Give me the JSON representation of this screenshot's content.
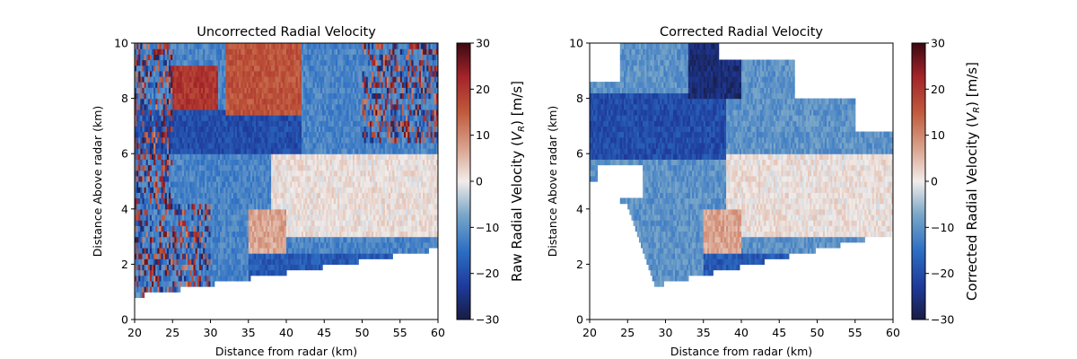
{
  "chart_data": [
    {
      "type": "heatmap",
      "title": "Uncorrected Radial Velocity",
      "xlabel": "Distance from radar (km)",
      "ylabel": "Distance Above radar  (km)",
      "xlim": [
        20,
        60
      ],
      "ylim": [
        0,
        10
      ],
      "xticks": [
        20,
        25,
        30,
        35,
        40,
        45,
        50,
        55,
        60
      ],
      "yticks": [
        0,
        2,
        4,
        6,
        8,
        10
      ],
      "lower_data_edge": [
        [
          20,
          0.85
        ],
        [
          60,
          2.55
        ]
      ],
      "colorbar": {
        "label_pre": "Raw Radial Velocity (",
        "label_sym": "V",
        "label_sub": "R",
        "label_post": ") [m/s]",
        "range": [
          -30,
          30
        ],
        "ticks": [
          -30,
          -20,
          -10,
          0,
          10,
          20,
          30
        ],
        "colormap": "balance"
      },
      "regions": [
        {
          "name": "background-flow",
          "x": [
            20,
            60
          ],
          "y": [
            1.0,
            10
          ],
          "value": -12
        },
        {
          "name": "upper-inbound-core",
          "x": [
            20,
            42
          ],
          "y": [
            6.0,
            7.6
          ],
          "value": -20
        },
        {
          "name": "folded-outbound-left",
          "x": [
            25,
            31
          ],
          "y": [
            7.6,
            9.2
          ],
          "value": 20
        },
        {
          "name": "folded-outbound-right",
          "x": [
            32,
            42
          ],
          "y": [
            7.4,
            10
          ],
          "value": 16
        },
        {
          "name": "near-zero-band",
          "x": [
            38,
            60
          ],
          "y": [
            3.0,
            6.0
          ],
          "value": 1
        },
        {
          "name": "outbound-patch",
          "x": [
            35,
            40
          ],
          "y": [
            2.2,
            4.0
          ],
          "value": 7
        },
        {
          "name": "low-inbound-strip",
          "x": [
            35,
            60
          ],
          "y": [
            1.4,
            2.4
          ],
          "value": -18
        }
      ]
    },
    {
      "type": "heatmap",
      "title": "Corrected Radial Velocity",
      "xlabel": "Distance from radar (km)",
      "ylabel": "Distance Above radar  (km)",
      "xlim": [
        20,
        60
      ],
      "ylim": [
        0,
        10
      ],
      "xticks": [
        20,
        25,
        30,
        35,
        40,
        45,
        50,
        55,
        60
      ],
      "yticks": [
        0,
        2,
        4,
        6,
        8,
        10
      ],
      "colorbar": {
        "label_pre": "Corrected Radial Velocity (",
        "label_sym": "V",
        "label_sub": "R",
        "label_post": ") [m/s]",
        "range": [
          -30,
          30
        ],
        "ticks": [
          -30,
          -20,
          -10,
          0,
          10,
          20,
          30
        ],
        "colormap": "balance"
      },
      "regions": [
        {
          "name": "inbound-core",
          "x": [
            20,
            38
          ],
          "y": [
            5.8,
            8.2
          ],
          "value": -20
        },
        {
          "name": "strong-inbound-top",
          "x": [
            33,
            40
          ],
          "y": [
            8.0,
            10
          ],
          "value": -26
        },
        {
          "name": "near-zero-band",
          "x": [
            38,
            60
          ],
          "y": [
            3.0,
            6.0
          ],
          "value": 1
        },
        {
          "name": "outbound-patch",
          "x": [
            35,
            40
          ],
          "y": [
            2.2,
            4.0
          ],
          "value": 7
        },
        {
          "name": "low-inbound-strip",
          "x": [
            35,
            50
          ],
          "y": [
            1.4,
            2.4
          ],
          "value": -18
        }
      ]
    }
  ]
}
